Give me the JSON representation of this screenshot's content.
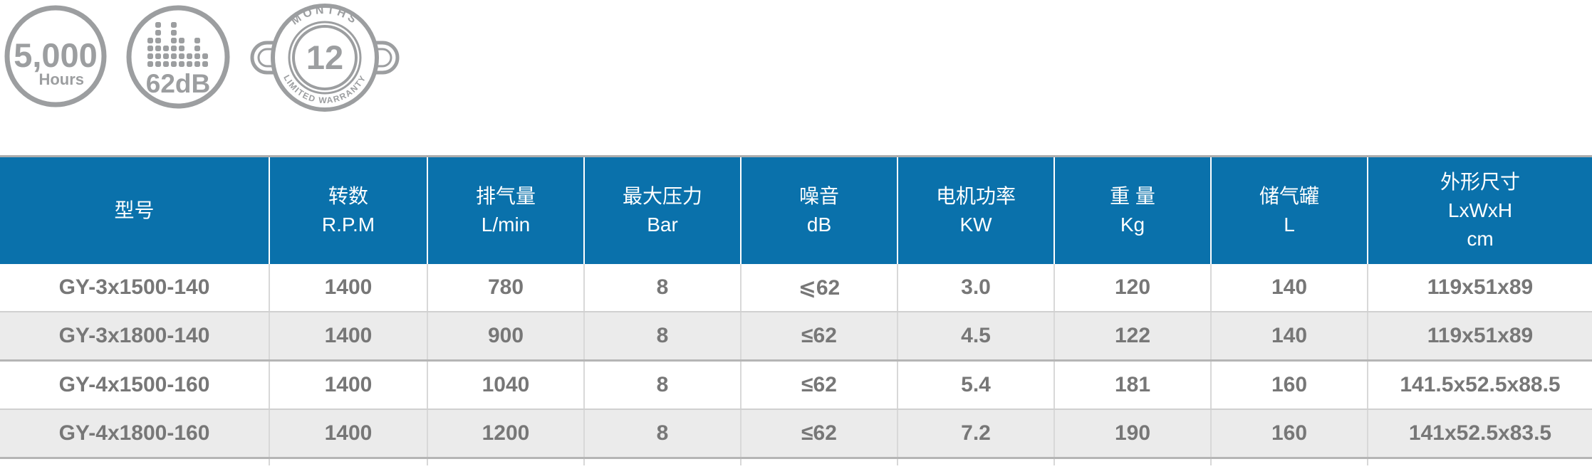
{
  "colors": {
    "header_blue": "#0A71AB",
    "alt_row_gray": "#EBEBEB",
    "body_text_gray": "#777777",
    "badge_gray": "#9C9EA0"
  },
  "badges": {
    "hours": {
      "value": "5,000",
      "unit": "Hours"
    },
    "noise": {
      "value": "62dB"
    },
    "warranty": {
      "top": "MONTHS",
      "value": "12",
      "bottom": "LIMITED WARRANTY"
    }
  },
  "table": {
    "headers": [
      {
        "lines": [
          "型号"
        ]
      },
      {
        "lines": [
          "转数",
          "R.P.M"
        ]
      },
      {
        "lines": [
          "排气量",
          "L/min"
        ]
      },
      {
        "lines": [
          "最大压力",
          "Bar"
        ]
      },
      {
        "lines": [
          "噪音",
          "dB"
        ]
      },
      {
        "lines": [
          "电机功率",
          "KW"
        ]
      },
      {
        "lines": [
          "重 量",
          "Kg"
        ]
      },
      {
        "lines": [
          "储气罐",
          "L"
        ]
      },
      {
        "lines": [
          "外形尺寸",
          "LxWxH",
          "cm"
        ]
      }
    ],
    "rows": [
      {
        "cells": [
          "GY-3x1500-140",
          "1400",
          "780",
          "8",
          "⩽62",
          "3.0",
          "120",
          "140",
          "119x51x89"
        ]
      },
      {
        "cells": [
          "GY-3x1800-140",
          "1400",
          "900",
          "8",
          "≤62",
          "4.5",
          "122",
          "140",
          "119x51x89"
        ]
      },
      {
        "cells": [
          "GY-4x1500-160",
          "1400",
          "1040",
          "8",
          "≤62",
          "5.4",
          "181",
          "160",
          "141.5x52.5x88.5"
        ]
      },
      {
        "cells": [
          "GY-4x1800-160",
          "1400",
          "1200",
          "8",
          "≤62",
          "7.2",
          "190",
          "160",
          "141x52.5x83.5"
        ]
      }
    ]
  }
}
